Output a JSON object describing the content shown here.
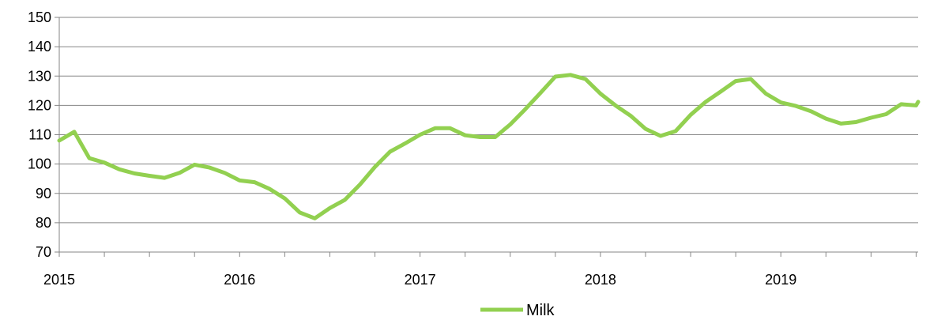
{
  "chart_data": {
    "type": "line",
    "title": "",
    "xlabel": "",
    "ylabel": "",
    "ylim": [
      70,
      150
    ],
    "yticks": [
      70,
      80,
      90,
      100,
      110,
      120,
      130,
      140,
      150
    ],
    "xticks": [
      "2015",
      "2016",
      "2017",
      "2018",
      "2019"
    ],
    "grid": true,
    "legend_position": "bottom",
    "series": [
      {
        "name": "Milk",
        "color": "#92d050",
        "x": [
          "2015-01",
          "2015-02",
          "2015-03",
          "2015-04",
          "2015-05",
          "2015-06",
          "2015-07",
          "2015-08",
          "2015-09",
          "2015-10",
          "2015-11",
          "2015-12",
          "2016-01",
          "2016-02",
          "2016-03",
          "2016-04",
          "2016-05",
          "2016-06",
          "2016-07",
          "2016-08",
          "2016-09",
          "2016-10",
          "2016-11",
          "2016-12",
          "2017-01",
          "2017-02",
          "2017-03",
          "2017-04",
          "2017-05",
          "2017-06",
          "2017-07",
          "2017-08",
          "2017-09",
          "2017-10",
          "2017-11",
          "2017-12",
          "2018-01",
          "2018-02",
          "2018-03",
          "2018-04",
          "2018-05",
          "2018-06",
          "2018-07",
          "2018-08",
          "2018-09",
          "2018-10",
          "2018-11",
          "2018-12",
          "2019-01",
          "2019-02",
          "2019-03",
          "2019-04",
          "2019-05",
          "2019-06",
          "2019-07",
          "2019-08",
          "2019-09",
          "2019-10",
          "2019-11"
        ],
        "values": [
          108,
          111,
          102,
          100.5,
          98.2,
          96.8,
          96,
          95.3,
          97,
          99.8,
          98.8,
          97,
          94.4,
          93.8,
          91.5,
          88.3,
          83.5,
          81.5,
          85,
          87.8,
          93,
          99,
          104.2,
          107,
          110,
          112.2,
          112.2,
          109.8,
          109.2,
          109.2,
          113.5,
          118.7,
          124.2,
          129.8,
          130.4,
          129,
          124,
          120,
          116.5,
          112,
          109.6,
          111.2,
          116.8,
          121.2,
          124.7,
          128.3,
          129,
          124,
          121,
          119.8,
          118,
          115.5,
          113.8,
          114.3,
          115.8,
          117,
          120.4,
          120,
          121.2
        ]
      }
    ]
  }
}
